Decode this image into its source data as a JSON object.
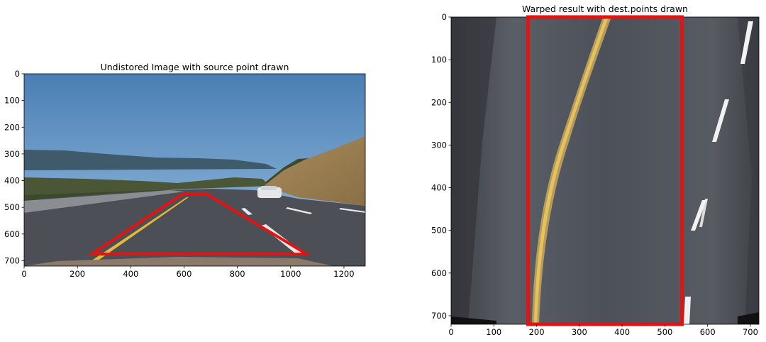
{
  "chart_data": [
    {
      "type": "image",
      "title": "Undistored Image with source point drawn",
      "xlim": [
        0,
        1280
      ],
      "ylim": [
        720,
        0
      ],
      "xticks": [
        0,
        200,
        400,
        600,
        800,
        1000,
        1200
      ],
      "yticks": [
        0,
        100,
        200,
        300,
        400,
        500,
        600,
        700
      ],
      "overlay_polygon": {
        "color": "#e31313",
        "points": [
          [
            595,
            450
          ],
          [
            685,
            450
          ],
          [
            1060,
            675
          ],
          [
            255,
            675
          ]
        ]
      }
    },
    {
      "type": "image",
      "title": "Warped result with dest.points drawn",
      "xlim": [
        0,
        720
      ],
      "ylim": [
        720,
        0
      ],
      "xticks": [
        0,
        100,
        200,
        300,
        400,
        500,
        600,
        700
      ],
      "yticks": [
        0,
        100,
        200,
        300,
        400,
        500,
        600,
        700
      ],
      "overlay_polygon": {
        "color": "#e31313",
        "points": [
          [
            180,
            0
          ],
          [
            540,
            0
          ],
          [
            540,
            720
          ],
          [
            180,
            720
          ]
        ]
      }
    }
  ]
}
